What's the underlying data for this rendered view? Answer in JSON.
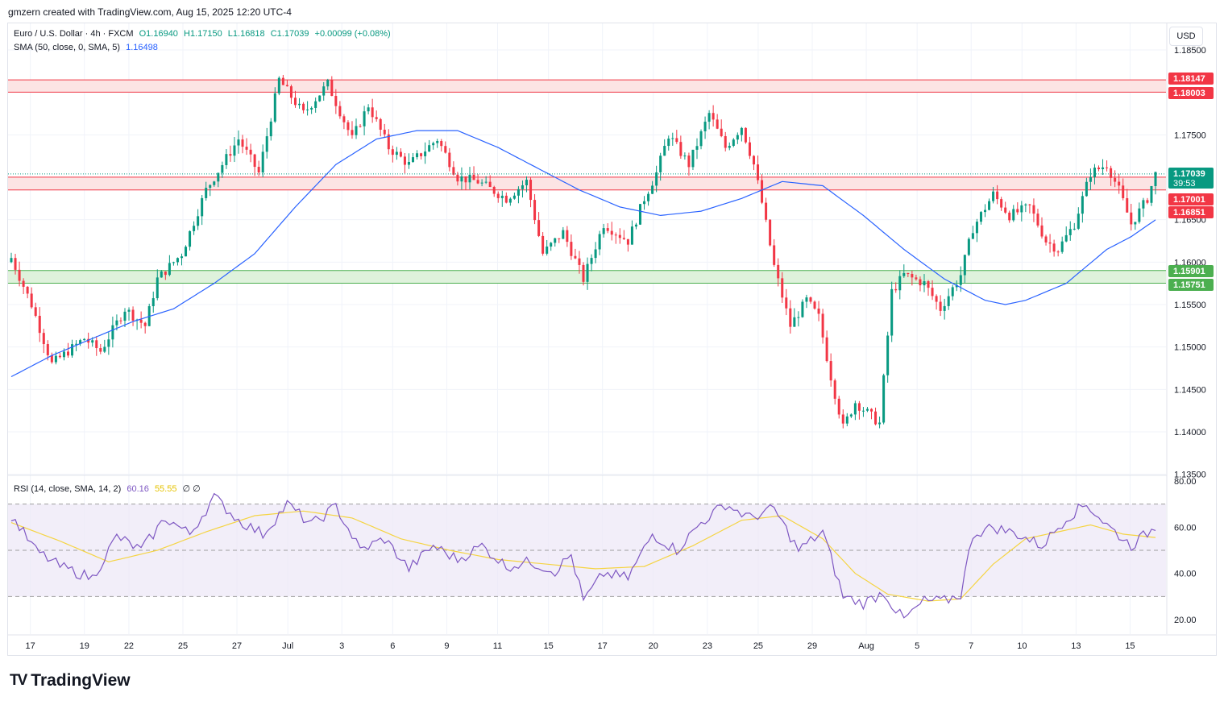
{
  "attribution": "gmzern created with TradingView.com, Aug 15, 2025 12:20 UTC-4",
  "currency": "USD",
  "logo": {
    "mark": "TV",
    "text": "TradingView"
  },
  "legend": {
    "symbol": "Euro / U.S. Dollar · 4h · FXCM",
    "open": "O1.16940",
    "high": "H1.17150",
    "low": "L1.16818",
    "close": "C1.17039",
    "change": "+0.00099 (+0.08%)",
    "sma_label": "SMA (50, close, 0, SMA, 5)",
    "sma_value": "1.16498",
    "rsi_label": "RSI (14, close, SMA, 14, 2)",
    "rsi_value": "60.16",
    "rsi_ma_value": "55.55",
    "rsi_extra": "∅ ∅"
  },
  "colors": {
    "up": "#089981",
    "down": "#f23645",
    "sma": "#2962ff",
    "rsi": "#7e57c2",
    "rsi_ma": "#f5d442",
    "resistance_fill": "#fce4e4",
    "resistance_line": "#f23645",
    "support_fill": "#dff2dc",
    "support_line": "#4caf50"
  },
  "chart_data": [
    {
      "type": "candlestick",
      "title": "Euro / U.S. Dollar · 4h · FXCM",
      "ylim": [
        1.135,
        1.187
      ],
      "y_ticks": [
        "1.18500",
        "1.17500",
        "1.16500",
        "1.16000",
        "1.15500",
        "1.15000",
        "1.14500",
        "1.14000",
        "1.13500"
      ],
      "x_ticks": [
        "17",
        "19",
        "22",
        "25",
        "27",
        "Jul",
        "3",
        "6",
        "9",
        "11",
        "15",
        "17",
        "20",
        "23",
        "25",
        "29",
        "Aug",
        "5",
        "7",
        "10",
        "13",
        "15"
      ],
      "anchors": [
        {
          "i": 0,
          "p": 1.1605
        },
        {
          "i": 5,
          "p": 1.155
        },
        {
          "i": 10,
          "p": 1.148
        },
        {
          "i": 18,
          "p": 1.151
        },
        {
          "i": 22,
          "p": 1.1495
        },
        {
          "i": 28,
          "p": 1.1545
        },
        {
          "i": 33,
          "p": 1.1525
        },
        {
          "i": 36,
          "p": 1.158
        },
        {
          "i": 42,
          "p": 1.161
        },
        {
          "i": 48,
          "p": 1.1685
        },
        {
          "i": 56,
          "p": 1.1745
        },
        {
          "i": 61,
          "p": 1.1705
        },
        {
          "i": 66,
          "p": 1.1815
        },
        {
          "i": 72,
          "p": 1.1775
        },
        {
          "i": 78,
          "p": 1.181
        },
        {
          "i": 84,
          "p": 1.1745
        },
        {
          "i": 88,
          "p": 1.1785
        },
        {
          "i": 93,
          "p": 1.1735
        },
        {
          "i": 98,
          "p": 1.1715
        },
        {
          "i": 105,
          "p": 1.1745
        },
        {
          "i": 110,
          "p": 1.17
        },
        {
          "i": 115,
          "p": 1.1695
        },
        {
          "i": 122,
          "p": 1.1675
        },
        {
          "i": 127,
          "p": 1.1695
        },
        {
          "i": 131,
          "p": 1.161
        },
        {
          "i": 136,
          "p": 1.1635
        },
        {
          "i": 141,
          "p": 1.158
        },
        {
          "i": 146,
          "p": 1.1645
        },
        {
          "i": 152,
          "p": 1.1625
        },
        {
          "i": 156,
          "p": 1.1675
        },
        {
          "i": 159,
          "p": 1.1705
        },
        {
          "i": 162,
          "p": 1.175
        },
        {
          "i": 167,
          "p": 1.1715
        },
        {
          "i": 172,
          "p": 1.1775
        },
        {
          "i": 176,
          "p": 1.1735
        },
        {
          "i": 180,
          "p": 1.176
        },
        {
          "i": 183,
          "p": 1.1715
        },
        {
          "i": 185,
          "p": 1.167
        },
        {
          "i": 188,
          "p": 1.1595
        },
        {
          "i": 192,
          "p": 1.1525
        },
        {
          "i": 196,
          "p": 1.1555
        },
        {
          "i": 199,
          "p": 1.1535
        },
        {
          "i": 202,
          "p": 1.1465
        },
        {
          "i": 205,
          "p": 1.1405
        },
        {
          "i": 208,
          "p": 1.1435
        },
        {
          "i": 214,
          "p": 1.141
        },
        {
          "i": 217,
          "p": 1.1565
        },
        {
          "i": 220,
          "p": 1.1585
        },
        {
          "i": 225,
          "p": 1.1575
        },
        {
          "i": 229,
          "p": 1.1545
        },
        {
          "i": 234,
          "p": 1.1585
        },
        {
          "i": 237,
          "p": 1.164
        },
        {
          "i": 242,
          "p": 1.168
        },
        {
          "i": 246,
          "p": 1.1655
        },
        {
          "i": 251,
          "p": 1.1665
        },
        {
          "i": 255,
          "p": 1.1625
        },
        {
          "i": 258,
          "p": 1.1615
        },
        {
          "i": 262,
          "p": 1.1645
        },
        {
          "i": 266,
          "p": 1.1705
        },
        {
          "i": 270,
          "p": 1.1715
        },
        {
          "i": 273,
          "p": 1.1685
        },
        {
          "i": 276,
          "p": 1.1645
        },
        {
          "i": 280,
          "p": 1.1675
        },
        {
          "i": 282,
          "p": 1.17039
        }
      ],
      "bars_count": 283,
      "sma_anchors": [
        {
          "i": 0,
          "p": 1.1465
        },
        {
          "i": 10,
          "p": 1.149
        },
        {
          "i": 20,
          "p": 1.151
        },
        {
          "i": 30,
          "p": 1.153
        },
        {
          "i": 40,
          "p": 1.1545
        },
        {
          "i": 50,
          "p": 1.1575
        },
        {
          "i": 60,
          "p": 1.161
        },
        {
          "i": 70,
          "p": 1.1665
        },
        {
          "i": 80,
          "p": 1.1715
        },
        {
          "i": 90,
          "p": 1.1745
        },
        {
          "i": 100,
          "p": 1.1755
        },
        {
          "i": 110,
          "p": 1.1755
        },
        {
          "i": 120,
          "p": 1.1735
        },
        {
          "i": 130,
          "p": 1.171
        },
        {
          "i": 140,
          "p": 1.1685
        },
        {
          "i": 150,
          "p": 1.1665
        },
        {
          "i": 160,
          "p": 1.1655
        },
        {
          "i": 170,
          "p": 1.166
        },
        {
          "i": 180,
          "p": 1.1675
        },
        {
          "i": 190,
          "p": 1.1695
        },
        {
          "i": 200,
          "p": 1.169
        },
        {
          "i": 210,
          "p": 1.1655
        },
        {
          "i": 220,
          "p": 1.1615
        },
        {
          "i": 230,
          "p": 1.158
        },
        {
          "i": 240,
          "p": 1.1555
        },
        {
          "i": 245,
          "p": 1.155
        },
        {
          "i": 250,
          "p": 1.1555
        },
        {
          "i": 260,
          "p": 1.1575
        },
        {
          "i": 270,
          "p": 1.1615
        },
        {
          "i": 276,
          "p": 1.163
        },
        {
          "i": 282,
          "p": 1.16498
        }
      ],
      "zones": [
        {
          "name": "resistance",
          "from": 1.18003,
          "to": 1.18147,
          "type": "resistance"
        },
        {
          "name": "mid-resistance",
          "from": 1.16851,
          "to": 1.17001,
          "type": "resistance"
        },
        {
          "name": "support",
          "from": 1.15751,
          "to": 1.15901,
          "type": "support"
        }
      ],
      "price_labels": [
        {
          "text": "1.18147",
          "kind": "resistance"
        },
        {
          "text": "1.18003",
          "kind": "resistance"
        },
        {
          "text": "1.17039",
          "kind": "last",
          "countdown": "39:53"
        },
        {
          "text": "1.17001",
          "kind": "resistance"
        },
        {
          "text": "1.16851",
          "kind": "resistance"
        },
        {
          "text": "1.15901",
          "kind": "support"
        },
        {
          "text": "1.15751",
          "kind": "support"
        }
      ]
    },
    {
      "type": "line",
      "title": "RSI (14, close, SMA, 14, 2)",
      "ylim": [
        15,
        85
      ],
      "y_ticks": [
        "80.00",
        "60.00",
        "40.00",
        "20.00"
      ],
      "bands": [
        70,
        50,
        30
      ],
      "series": [
        {
          "name": "RSI",
          "anchors": [
            {
              "i": 0,
              "v": 65
            },
            {
              "i": 6,
              "v": 50
            },
            {
              "i": 12,
              "v": 43
            },
            {
              "i": 20,
              "v": 38
            },
            {
              "i": 26,
              "v": 56
            },
            {
              "i": 32,
              "v": 50
            },
            {
              "i": 38,
              "v": 64
            },
            {
              "i": 44,
              "v": 57
            },
            {
              "i": 50,
              "v": 73
            },
            {
              "i": 56,
              "v": 63
            },
            {
              "i": 62,
              "v": 57
            },
            {
              "i": 68,
              "v": 70
            },
            {
              "i": 74,
              "v": 61
            },
            {
              "i": 80,
              "v": 69
            },
            {
              "i": 86,
              "v": 50
            },
            {
              "i": 92,
              "v": 55
            },
            {
              "i": 98,
              "v": 42
            },
            {
              "i": 104,
              "v": 52
            },
            {
              "i": 110,
              "v": 46
            },
            {
              "i": 116,
              "v": 52
            },
            {
              "i": 122,
              "v": 43
            },
            {
              "i": 128,
              "v": 45
            },
            {
              "i": 134,
              "v": 41
            },
            {
              "i": 138,
              "v": 48
            },
            {
              "i": 141,
              "v": 28
            },
            {
              "i": 146,
              "v": 40
            },
            {
              "i": 152,
              "v": 38
            },
            {
              "i": 158,
              "v": 57
            },
            {
              "i": 164,
              "v": 50
            },
            {
              "i": 170,
              "v": 62
            },
            {
              "i": 176,
              "v": 70
            },
            {
              "i": 182,
              "v": 64
            },
            {
              "i": 188,
              "v": 68
            },
            {
              "i": 194,
              "v": 50
            },
            {
              "i": 200,
              "v": 58
            },
            {
              "i": 205,
              "v": 30
            },
            {
              "i": 210,
              "v": 27
            },
            {
              "i": 215,
              "v": 32
            },
            {
              "i": 218,
              "v": 24
            },
            {
              "i": 220,
              "v": 20
            },
            {
              "i": 225,
              "v": 28
            },
            {
              "i": 230,
              "v": 28
            },
            {
              "i": 234,
              "v": 31
            },
            {
              "i": 237,
              "v": 57
            },
            {
              "i": 242,
              "v": 60
            },
            {
              "i": 248,
              "v": 57
            },
            {
              "i": 254,
              "v": 52
            },
            {
              "i": 260,
              "v": 64
            },
            {
              "i": 265,
              "v": 70
            },
            {
              "i": 270,
              "v": 61
            },
            {
              "i": 276,
              "v": 52
            },
            {
              "i": 282,
              "v": 60.16
            }
          ]
        },
        {
          "name": "RSI-based MA",
          "anchors": [
            {
              "i": 0,
              "v": 62
            },
            {
              "i": 12,
              "v": 54
            },
            {
              "i": 24,
              "v": 45
            },
            {
              "i": 36,
              "v": 50
            },
            {
              "i": 48,
              "v": 58
            },
            {
              "i": 60,
              "v": 65
            },
            {
              "i": 72,
              "v": 67
            },
            {
              "i": 84,
              "v": 64
            },
            {
              "i": 96,
              "v": 55
            },
            {
              "i": 108,
              "v": 50
            },
            {
              "i": 120,
              "v": 46
            },
            {
              "i": 132,
              "v": 44
            },
            {
              "i": 144,
              "v": 42
            },
            {
              "i": 156,
              "v": 43
            },
            {
              "i": 168,
              "v": 52
            },
            {
              "i": 180,
              "v": 63
            },
            {
              "i": 190,
              "v": 65
            },
            {
              "i": 200,
              "v": 55
            },
            {
              "i": 208,
              "v": 40
            },
            {
              "i": 216,
              "v": 31
            },
            {
              "i": 226,
              "v": 28
            },
            {
              "i": 234,
              "v": 29
            },
            {
              "i": 242,
              "v": 44
            },
            {
              "i": 250,
              "v": 55
            },
            {
              "i": 258,
              "v": 58
            },
            {
              "i": 266,
              "v": 61
            },
            {
              "i": 274,
              "v": 57
            },
            {
              "i": 282,
              "v": 55.55
            }
          ]
        }
      ]
    }
  ]
}
